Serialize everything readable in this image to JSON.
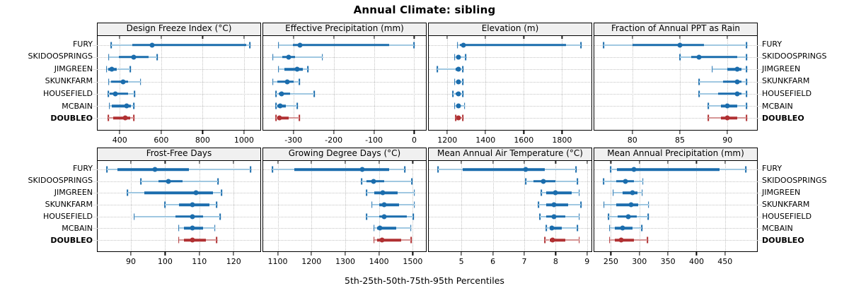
{
  "title": "Annual Climate: sibling",
  "caption": "5th-25th-50th-75th-95th Percentiles",
  "sites": [
    "FURY",
    "SKIDOOSPRINGS",
    "JIMGREEN",
    "SKUNKFARM",
    "HOUSEFIELD",
    "MCBAIN",
    "DOUBLEO"
  ],
  "highlight_site": "DOUBLEO",
  "percentiles": [
    "5th",
    "25th",
    "50th",
    "75th",
    "95th"
  ],
  "colors": {
    "series_blue": "#1b6dad",
    "series_blue_light": "#a0c8e1",
    "series_red": "#b03032",
    "series_red_light": "#d69696",
    "grid": "#c3c3c3",
    "header_bg": "#f0f0f0",
    "border": "#000000"
  },
  "chart_data": [
    {
      "type": "dotplot",
      "title": "Design Freeze Index (°C)",
      "ticks": [
        400,
        600,
        800,
        1000
      ],
      "xlim": [
        293,
        1079
      ],
      "series": [
        {
          "name": "FURY",
          "values": [
            358,
            460,
            556,
            1010,
            1028
          ]
        },
        {
          "name": "SKIDOOSPRINGS",
          "values": [
            347,
            394,
            467,
            539,
            580
          ]
        },
        {
          "name": "JIMGREEN",
          "values": [
            336,
            345,
            361,
            387,
            450
          ]
        },
        {
          "name": "SKUNKFARM",
          "values": [
            347,
            358,
            417,
            439,
            500
          ]
        },
        {
          "name": "HOUSEFIELD",
          "values": [
            345,
            352,
            378,
            439,
            472
          ]
        },
        {
          "name": "MCBAIN",
          "values": [
            350,
            360,
            433,
            455,
            467
          ]
        },
        {
          "name": "DOUBLEO",
          "values": [
            345,
            367,
            426,
            450,
            467
          ]
        }
      ]
    },
    {
      "type": "dotplot",
      "title": "Effective Precipitation (mm)",
      "ticks": [
        -300,
        -200,
        -100,
        0
      ],
      "xlim": [
        -375,
        29
      ],
      "series": [
        {
          "name": "FURY",
          "values": [
            -337,
            -302,
            -283,
            -62,
            -1
          ]
        },
        {
          "name": "SKIDOOSPRINGS",
          "values": [
            -351,
            -328,
            -311,
            -296,
            -228
          ]
        },
        {
          "name": "JIMGREEN",
          "values": [
            -337,
            -322,
            -290,
            -277,
            -264
          ]
        },
        {
          "name": "SKUNKFARM",
          "values": [
            -351,
            -340,
            -316,
            -300,
            -285
          ]
        },
        {
          "name": "HOUSEFIELD",
          "values": [
            -343,
            -337,
            -329,
            -308,
            -248
          ]
        },
        {
          "name": "MCBAIN",
          "values": [
            -343,
            -339,
            -333,
            -318,
            -291
          ]
        },
        {
          "name": "DOUBLEO",
          "values": [
            -343,
            -340,
            -335,
            -312,
            -285
          ]
        }
      ]
    },
    {
      "type": "dotplot",
      "title": "Elevation (m)",
      "ticks": [
        1200,
        1400,
        1600,
        1800
      ],
      "xlim": [
        1103,
        1954
      ],
      "series": [
        {
          "name": "FURY",
          "values": [
            1253,
            1267,
            1283,
            1820,
            1900
          ]
        },
        {
          "name": "SKIDOOSPRINGS",
          "values": [
            1239,
            1251,
            1258,
            1270,
            1295
          ]
        },
        {
          "name": "JIMGREEN",
          "values": [
            1149,
            1245,
            1258,
            1268,
            1282
          ]
        },
        {
          "name": "SKUNKFARM",
          "values": [
            1239,
            1248,
            1258,
            1266,
            1280
          ]
        },
        {
          "name": "HOUSEFIELD",
          "values": [
            1230,
            1244,
            1259,
            1266,
            1280
          ]
        },
        {
          "name": "MCBAIN",
          "values": [
            1239,
            1247,
            1257,
            1270,
            1290
          ]
        },
        {
          "name": "DOUBLEO",
          "values": [
            1244,
            1250,
            1258,
            1266,
            1280
          ]
        }
      ]
    },
    {
      "type": "dotplot",
      "title": "Fraction of Annual PPT as Rain",
      "ticks": [
        80,
        85,
        90
      ],
      "xlim": [
        76,
        93.1
      ],
      "series": [
        {
          "name": "FURY",
          "values": [
            77,
            80,
            85,
            87.5,
            92
          ]
        },
        {
          "name": "SKIDOOSPRINGS",
          "values": [
            85,
            86.2,
            87,
            91,
            92
          ]
        },
        {
          "name": "JIMGREEN",
          "values": [
            88.4,
            90,
            91,
            91.5,
            92
          ]
        },
        {
          "name": "SKUNKFARM",
          "values": [
            87,
            89.5,
            91,
            91.5,
            92
          ]
        },
        {
          "name": "HOUSEFIELD",
          "values": [
            87,
            89,
            91,
            91.5,
            92
          ]
        },
        {
          "name": "MCBAIN",
          "values": [
            88,
            89.3,
            90,
            91,
            92
          ]
        },
        {
          "name": "DOUBLEO",
          "values": [
            88,
            89.3,
            90,
            91,
            92
          ]
        }
      ]
    },
    {
      "type": "dotplot",
      "title": "Frost-Free Days",
      "ticks": [
        90,
        100,
        110,
        120
      ],
      "xlim": [
        80.3,
        127.8
      ],
      "series": [
        {
          "name": "FURY",
          "values": [
            83,
            86,
            97,
            107,
            125
          ]
        },
        {
          "name": "SKIDOOSPRINGS",
          "values": [
            93,
            98,
            101,
            105,
            115.5
          ]
        },
        {
          "name": "JIMGREEN",
          "values": [
            89,
            94,
            109,
            114,
            116.5
          ]
        },
        {
          "name": "SKUNKFARM",
          "values": [
            100,
            104,
            108,
            113,
            115
          ]
        },
        {
          "name": "HOUSEFIELD",
          "values": [
            91,
            103,
            108,
            111,
            116
          ]
        },
        {
          "name": "MCBAIN",
          "values": [
            104,
            105.5,
            108,
            111,
            114.5
          ]
        },
        {
          "name": "DOUBLEO",
          "values": [
            104,
            105.5,
            108,
            112,
            115
          ]
        }
      ]
    },
    {
      "type": "dotplot",
      "title": "Growing Degree Days (°C)",
      "ticks": [
        1100,
        1200,
        1300,
        1400,
        1500
      ],
      "xlim": [
        1057,
        1539
      ],
      "series": [
        {
          "name": "FURY",
          "values": [
            1084,
            1150,
            1350,
            1430,
            1477
          ]
        },
        {
          "name": "SKIDOOSPRINGS",
          "values": [
            1349,
            1362,
            1383,
            1416,
            1497
          ]
        },
        {
          "name": "JIMGREEN",
          "values": [
            1363,
            1385,
            1411,
            1455,
            1505
          ]
        },
        {
          "name": "SKUNKFARM",
          "values": [
            1379,
            1400,
            1416,
            1460,
            1505
          ]
        },
        {
          "name": "HOUSEFIELD",
          "values": [
            1363,
            1400,
            1416,
            1482,
            1501
          ]
        },
        {
          "name": "MCBAIN",
          "values": [
            1385,
            1395,
            1402,
            1450,
            1494
          ]
        },
        {
          "name": "DOUBLEO",
          "values": [
            1385,
            1395,
            1409,
            1465,
            1495
          ]
        }
      ]
    },
    {
      "type": "dotplot",
      "title": "Mean Annual Air Temperature (°C)",
      "ticks": [
        5,
        6,
        7,
        8,
        9
      ],
      "xlim": [
        3.96,
        9.14
      ],
      "series": [
        {
          "name": "FURY",
          "values": [
            4.25,
            5.05,
            7.05,
            7.65,
            8.65
          ]
        },
        {
          "name": "SKIDOOSPRINGS",
          "values": [
            7.05,
            7.3,
            7.6,
            8.0,
            8.7
          ]
        },
        {
          "name": "JIMGREEN",
          "values": [
            7.55,
            7.7,
            8.0,
            8.5,
            8.75
          ]
        },
        {
          "name": "SKUNKFARM",
          "values": [
            7.45,
            7.7,
            7.95,
            8.4,
            8.8
          ]
        },
        {
          "name": "HOUSEFIELD",
          "values": [
            7.5,
            7.7,
            7.95,
            8.3,
            8.75
          ]
        },
        {
          "name": "MCBAIN",
          "values": [
            7.7,
            7.8,
            7.87,
            8.2,
            8.7
          ]
        },
        {
          "name": "DOUBLEO",
          "values": [
            7.65,
            7.8,
            7.9,
            8.3,
            8.75
          ]
        }
      ]
    },
    {
      "type": "dotplot",
      "title": "Mean Annual Precipitation (mm)",
      "ticks": [
        250,
        300,
        350,
        400,
        450
      ],
      "xlim": [
        221,
        506
      ],
      "series": [
        {
          "name": "FURY",
          "values": [
            250,
            261,
            291,
            440,
            486
          ]
        },
        {
          "name": "SKIDOOSPRINGS",
          "values": [
            237,
            260,
            276,
            290,
            306
          ]
        },
        {
          "name": "JIMGREEN",
          "values": [
            254,
            270,
            288,
            297,
            305
          ]
        },
        {
          "name": "SKUNKFARM",
          "values": [
            238,
            260,
            285,
            298,
            316
          ]
        },
        {
          "name": "HOUSEFIELD",
          "values": [
            246,
            262,
            281,
            295,
            315
          ]
        },
        {
          "name": "MCBAIN",
          "values": [
            248,
            257,
            270,
            288,
            304
          ]
        },
        {
          "name": "DOUBLEO",
          "values": [
            248,
            257,
            268,
            290,
            314
          ]
        }
      ]
    }
  ]
}
